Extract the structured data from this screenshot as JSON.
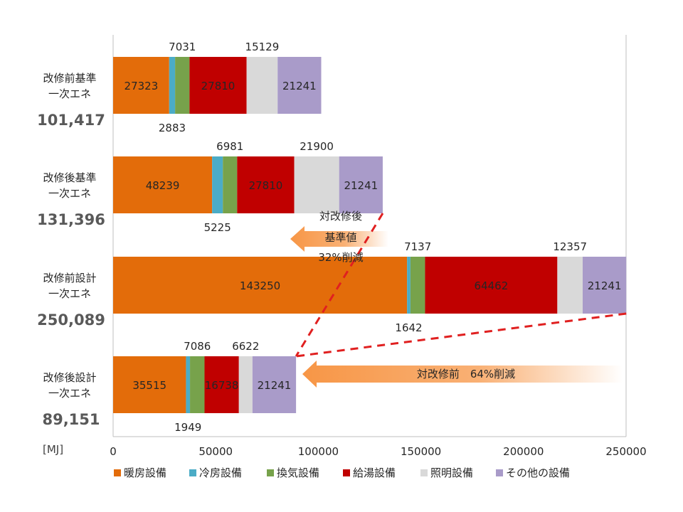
{
  "chart_data": {
    "type": "bar",
    "orientation": "horizontal",
    "stacked": true,
    "unit_label": "[MJ]",
    "xlim": [
      0,
      250000
    ],
    "x_ticks": [
      "0",
      "50000",
      "100000",
      "150000",
      "200000",
      "250000"
    ],
    "grid": false,
    "legend_position": "bottom",
    "categories": [
      {
        "lines": [
          "改修前基準",
          "一次エネ"
        ],
        "total": "101,417"
      },
      {
        "lines": [
          "改修後基準",
          "一次エネ"
        ],
        "total": "131,396"
      },
      {
        "lines": [
          "改修前設計",
          "一次エネ"
        ],
        "total": "250,089"
      },
      {
        "lines": [
          "改修後設計",
          "一次エネ"
        ],
        "total": "89,151"
      }
    ],
    "series": [
      {
        "name": "暖房設備",
        "color": "#E36C0A",
        "values": [
          27323,
          48239,
          143250,
          35515
        ]
      },
      {
        "name": "冷房設備",
        "color": "#4BACC6",
        "values": [
          2883,
          5225,
          1642,
          1949
        ]
      },
      {
        "name": "換気設備",
        "color": "#77A24B",
        "values": [
          7031,
          6981,
          7137,
          7086
        ]
      },
      {
        "name": "給湯設備",
        "color": "#C00000",
        "values": [
          27810,
          27810,
          64462,
          16738
        ]
      },
      {
        "name": "照明設備",
        "color": "#D9D9D9",
        "values": [
          15129,
          21900,
          12357,
          6622
        ]
      },
      {
        "name": "その他の設備",
        "color": "#A99BC9",
        "values": [
          21241,
          21241,
          21241,
          21241
        ]
      }
    ],
    "annotations": [
      {
        "lines": [
          "対改修後",
          "基準値",
          "32%削減"
        ]
      },
      {
        "lines": [
          "対改修前　64%削減"
        ]
      }
    ]
  }
}
